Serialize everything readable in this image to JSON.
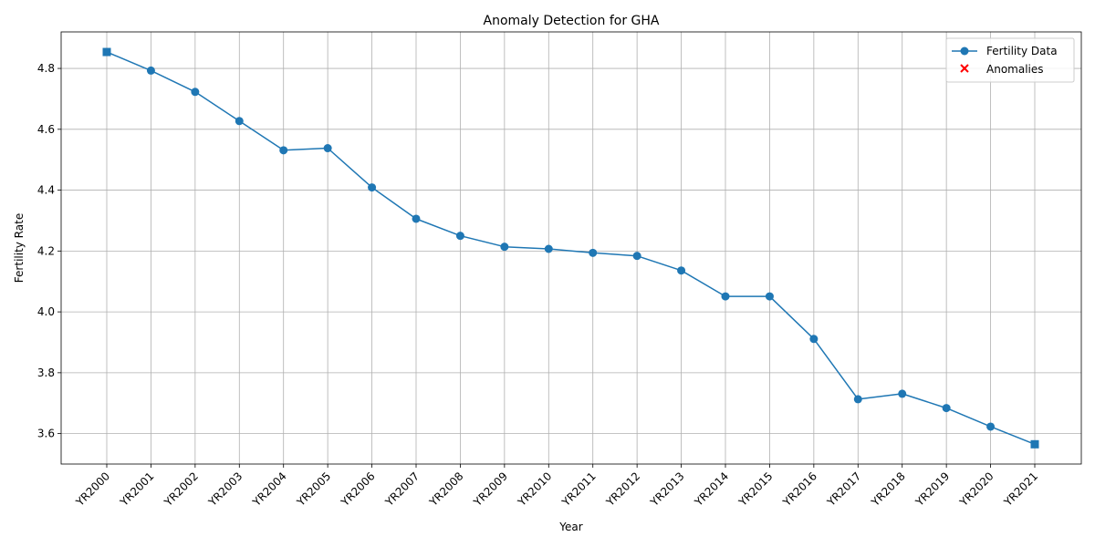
{
  "chart_data": {
    "type": "line",
    "title": "Anomaly Detection for GHA",
    "xlabel": "Year",
    "ylabel": "Fertility Rate",
    "categories": [
      "YR2000",
      "YR2001",
      "YR2002",
      "YR2003",
      "YR2004",
      "YR2005",
      "YR2006",
      "YR2007",
      "YR2008",
      "YR2009",
      "YR2010",
      "YR2011",
      "YR2012",
      "YR2013",
      "YR2014",
      "YR2015",
      "YR2016",
      "YR2017",
      "YR2018",
      "YR2019",
      "YR2020",
      "YR2021"
    ],
    "series": [
      {
        "name": "Fertility Data",
        "color": "#1f77b4",
        "marker": "circle",
        "values": [
          4.854,
          4.793,
          4.723,
          4.627,
          4.531,
          4.538,
          4.409,
          4.306,
          4.25,
          4.214,
          4.207,
          4.194,
          4.184,
          4.136,
          4.051,
          4.051,
          3.911,
          3.713,
          3.731,
          3.684,
          3.623,
          3.565
        ]
      }
    ],
    "anomalies": {
      "name": "Anomalies",
      "color": "#ff0000",
      "marker": "x",
      "indices": []
    },
    "square_markers_at": [
      0,
      21
    ],
    "ylim": [
      3.5,
      4.92
    ],
    "yticks": [
      3.6,
      3.8,
      4.0,
      4.2,
      4.4,
      4.6,
      4.8
    ],
    "ytick_labels": [
      "3.6",
      "3.8",
      "4.0",
      "4.2",
      "4.4",
      "4.6",
      "4.8"
    ],
    "grid": true,
    "legend_position": "top-right"
  }
}
